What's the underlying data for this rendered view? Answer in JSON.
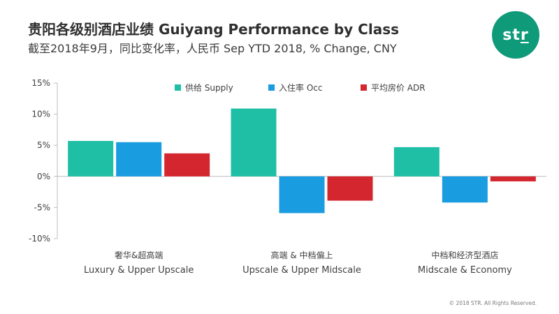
{
  "header": {
    "title": "贵阳各级别酒店业绩 Guiyang Performance by Class",
    "subtitle": "截至2018年9月，同比变化率，人民币   Sep YTD 2018, % Change, CNY"
  },
  "logo": {
    "text_pre": "st",
    "text_ul": "r",
    "color": "#0f9a7a"
  },
  "footer": {
    "copyright": "© 2018 STR. All Rights Reserved."
  },
  "chart_data": {
    "type": "bar",
    "categories": [
      [
        "奢华&超高端",
        "Luxury & Upper Upscale"
      ],
      [
        "高端 & 中档偏上",
        "Upscale & Upper Midscale"
      ],
      [
        "中档和经济型酒店",
        "Midscale & Economy"
      ]
    ],
    "series": [
      {
        "name": "供给 Supply",
        "color": "#1fbfa6",
        "values": [
          5.7,
          10.9,
          4.7
        ]
      },
      {
        "name": "入住率 Occ",
        "color": "#1a9ce0",
        "values": [
          5.5,
          -5.9,
          -4.2
        ]
      },
      {
        "name": "平均房价 ADR",
        "color": "#d4262f",
        "values": [
          3.7,
          -3.9,
          -0.8
        ]
      }
    ],
    "ylim": [
      -10,
      15
    ],
    "yticks": [
      15,
      10,
      5,
      0,
      -5,
      -10
    ],
    "ytick_labels": [
      "15%",
      "10%",
      "5%",
      "0%",
      "-5%",
      "-10%"
    ],
    "legend_position": "top",
    "grid": false
  }
}
